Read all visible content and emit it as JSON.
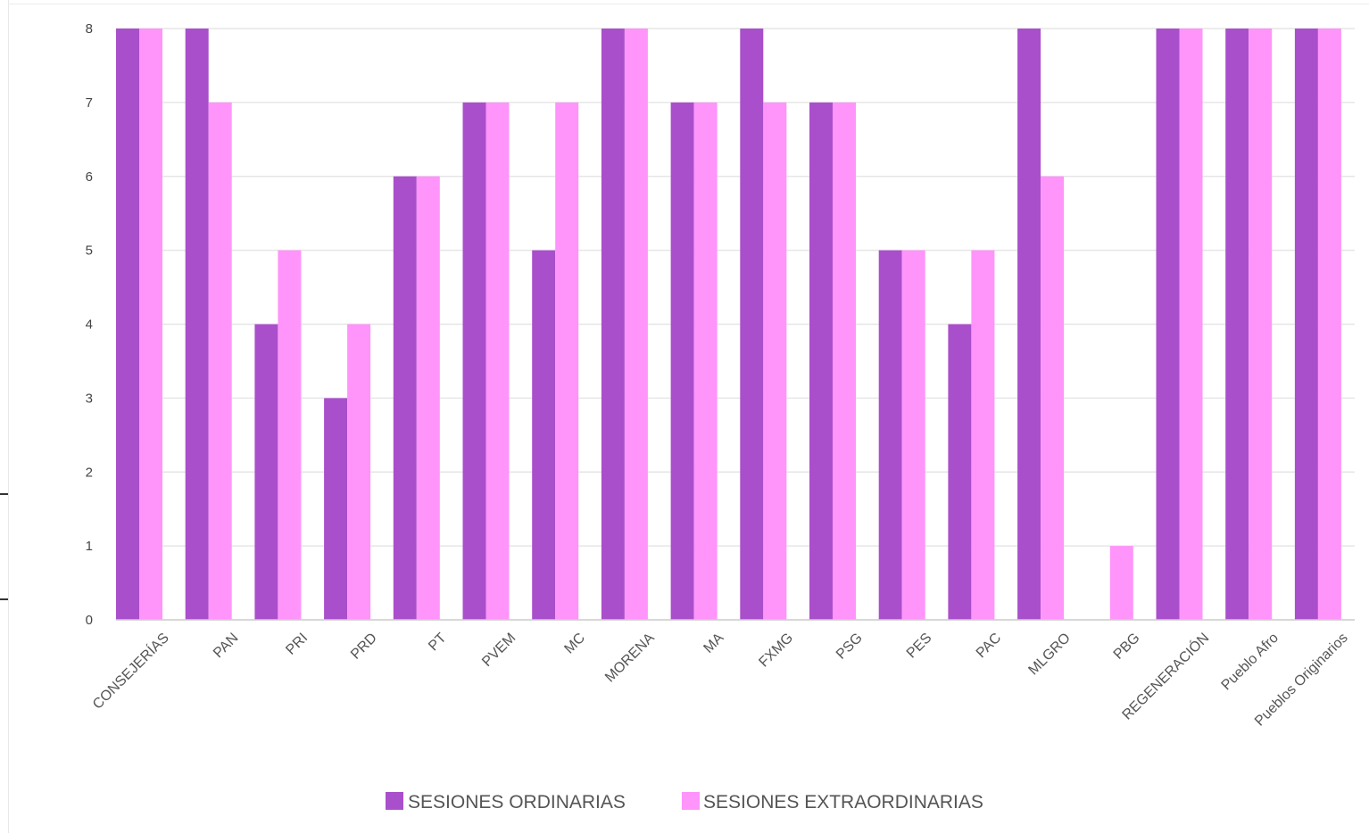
{
  "chart_data": {
    "type": "bar",
    "categories": [
      "CONSEJERÍAS",
      "PAN",
      "PRI",
      "PRD",
      "PT",
      "PVEM",
      "MC",
      "MORENA",
      "MA",
      "FXMG",
      "PSG",
      "PES",
      "PAC",
      "MLGRO",
      "PBG",
      "REGENERACIÓN",
      "Pueblo Afro",
      "Pueblos Originarios"
    ],
    "series": [
      {
        "name": "SESIONES ORDINARIAS",
        "color": "#aa4fcb",
        "values": [
          8,
          8,
          4,
          3,
          6,
          7,
          5,
          8,
          7,
          8,
          7,
          5,
          4,
          8,
          0,
          8,
          8,
          8
        ]
      },
      {
        "name": "SESIONES EXTRAORDINARIAS",
        "color": "#ff94fb",
        "values": [
          8,
          7,
          5,
          4,
          6,
          7,
          7,
          8,
          7,
          7,
          7,
          5,
          5,
          6,
          1,
          8,
          8,
          8
        ]
      }
    ],
    "yticks": [
      "0",
      "1",
      "2",
      "3",
      "4",
      "5",
      "6",
      "7",
      "8"
    ],
    "ylim": [
      0,
      8
    ],
    "grid": true,
    "legend": "bottom-center",
    "gridline_color": "#e6e6e6"
  }
}
